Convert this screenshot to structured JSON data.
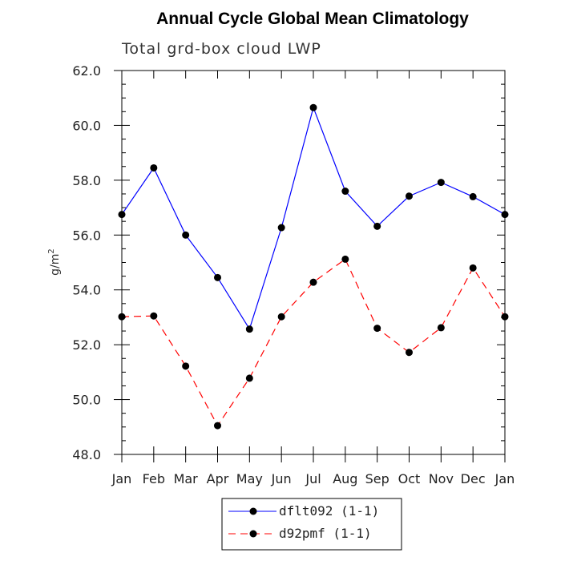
{
  "chart_data": {
    "type": "line",
    "title": "Annual Cycle Global Mean Climatology",
    "subtitle": "Total grd-box cloud LWP",
    "xlabel": "",
    "ylabel": "g/m",
    "ylabel_superscript": "2",
    "categories": [
      "Jan",
      "Feb",
      "Mar",
      "Apr",
      "May",
      "Jun",
      "Jul",
      "Aug",
      "Sep",
      "Oct",
      "Nov",
      "Dec",
      "Jan"
    ],
    "ylim": [
      48.0,
      62.0
    ],
    "yticks": [
      "48.0",
      "50.0",
      "52.0",
      "54.0",
      "56.0",
      "58.0",
      "60.0",
      "62.0"
    ],
    "grid": false,
    "legend_position": "bottom-center",
    "series": [
      {
        "name": "dflt092 (1-1)",
        "color": "#0000ff",
        "dash": "solid",
        "values": [
          56.75,
          58.45,
          56.0,
          54.45,
          52.57,
          56.27,
          60.65,
          57.6,
          56.32,
          57.42,
          57.92,
          57.4,
          56.75
        ]
      },
      {
        "name": "d92pmf (1-1)",
        "color": "#ff0000",
        "dash": "dashed",
        "values": [
          53.02,
          53.05,
          51.22,
          49.05,
          50.78,
          53.02,
          54.28,
          55.12,
          52.6,
          51.72,
          52.62,
          54.8,
          53.02
        ]
      }
    ]
  }
}
